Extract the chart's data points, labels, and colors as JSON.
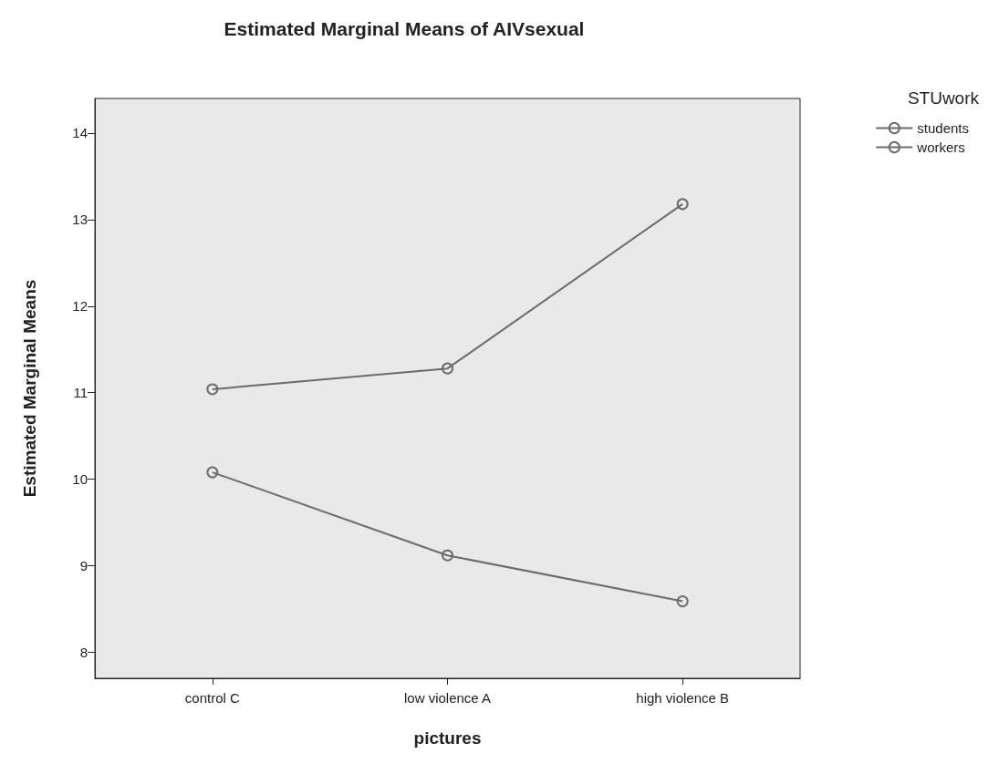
{
  "chart_data": {
    "type": "line",
    "title": "Estimated Marginal Means of AIVsexual",
    "xlabel": "pictures",
    "ylabel": "Estimated Marginal Means",
    "legend_title": "STUwork",
    "categories": [
      "control C",
      "low violence A",
      "high violence B"
    ],
    "series": [
      {
        "name": "students",
        "color": "#6b6b6b",
        "values": [
          11.04,
          11.28,
          13.18
        ]
      },
      {
        "name": "workers",
        "color": "#6b6b6b",
        "values": [
          10.08,
          9.12,
          8.59
        ]
      }
    ],
    "ylim": [
      7.7,
      14.4
    ],
    "yticks": [
      8,
      9,
      10,
      11,
      12,
      13,
      14
    ],
    "marker": "circle",
    "line_style": "solid",
    "legend": "top right",
    "grid": false
  }
}
